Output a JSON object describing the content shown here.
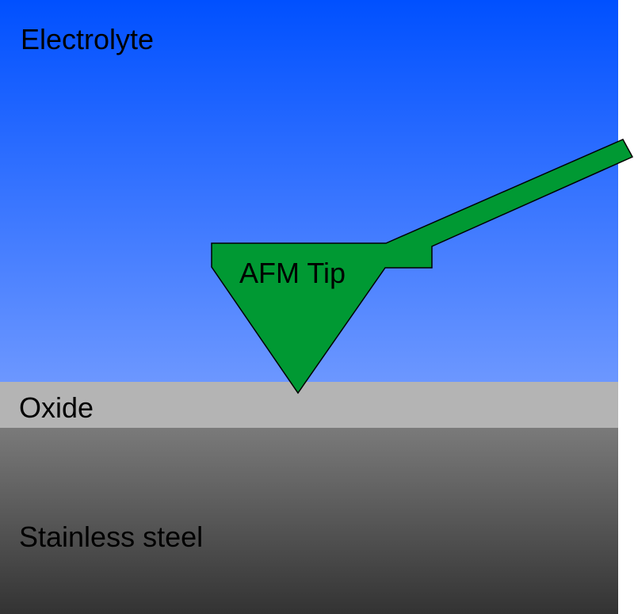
{
  "layers": {
    "electrolyte": "Electrolyte",
    "oxide": "Oxide",
    "steel": "Stainless steel"
  },
  "tip": {
    "label": "AFM Tip",
    "color": "#009933"
  },
  "colors": {
    "electrolyte_top": "#0050ff",
    "electrolyte_bottom": "#6c97ff",
    "oxide": "#b4b4b4",
    "steel_top": "#7a7a7a",
    "steel_bottom": "#333333"
  }
}
